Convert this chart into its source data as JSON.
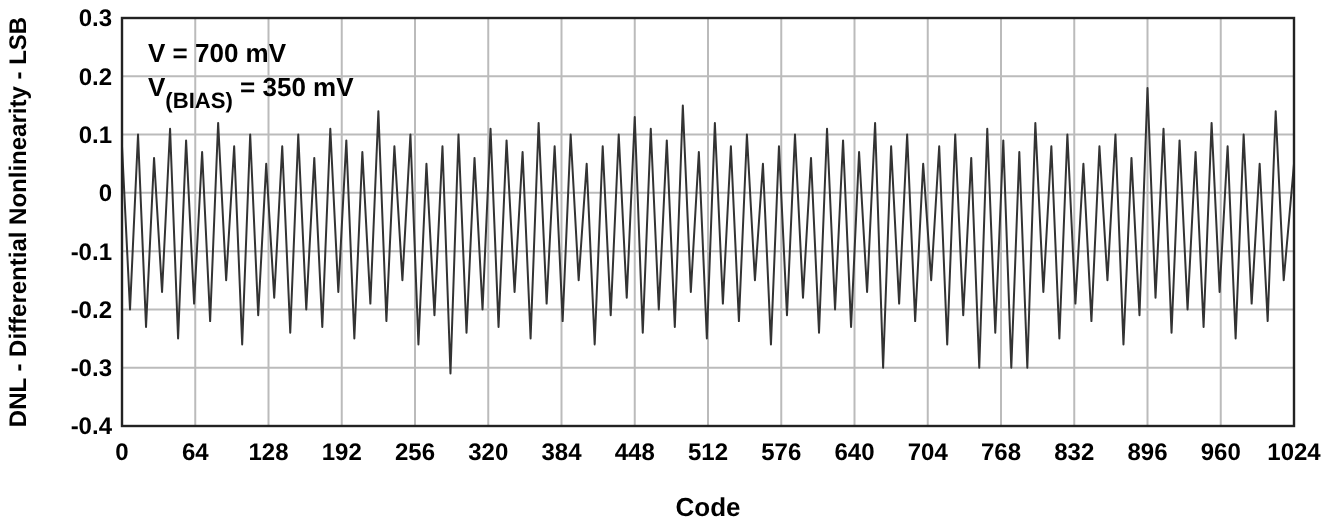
{
  "chart_data": {
    "type": "line",
    "xlabel": "Code",
    "ylabel": "DNL - Differential Nonlinearity - LSB",
    "annotations": [
      "V = 700 mV",
      "V$_{(BIAS)}$ = 350 mV"
    ],
    "x": [
      0,
      7,
      14,
      21,
      28,
      35,
      42,
      49,
      56,
      63,
      70,
      77,
      84,
      91,
      98,
      105,
      112,
      119,
      126,
      133,
      140,
      147,
      154,
      161,
      168,
      175,
      182,
      189,
      196,
      203,
      210,
      217,
      224,
      231,
      238,
      245,
      252,
      259,
      266,
      273,
      280,
      287,
      294,
      301,
      308,
      315,
      322,
      329,
      336,
      343,
      350,
      357,
      364,
      371,
      378,
      385,
      392,
      399,
      406,
      413,
      420,
      427,
      434,
      441,
      448,
      455,
      462,
      469,
      476,
      483,
      490,
      497,
      504,
      511,
      518,
      525,
      532,
      539,
      546,
      553,
      560,
      567,
      574,
      581,
      588,
      595,
      602,
      609,
      616,
      623,
      630,
      637,
      644,
      651,
      658,
      665,
      672,
      679,
      686,
      693,
      700,
      707,
      714,
      721,
      728,
      735,
      742,
      749,
      756,
      763,
      770,
      777,
      784,
      791,
      798,
      805,
      812,
      819,
      826,
      833,
      840,
      847,
      854,
      861,
      868,
      875,
      882,
      889,
      896,
      903,
      910,
      917,
      924,
      931,
      938,
      945,
      952,
      959,
      966,
      973,
      980,
      987,
      994,
      1001,
      1008,
      1015,
      1024
    ],
    "series": [
      {
        "color": "#333333",
        "values": [
          0.08,
          -0.2,
          0.1,
          -0.23,
          0.06,
          -0.17,
          0.11,
          -0.25,
          0.09,
          -0.19,
          0.07,
          -0.22,
          0.12,
          -0.15,
          0.08,
          -0.26,
          0.1,
          -0.21,
          0.05,
          -0.18,
          0.08,
          -0.24,
          0.1,
          -0.2,
          0.06,
          -0.23,
          0.11,
          -0.17,
          0.09,
          -0.25,
          0.07,
          -0.19,
          0.14,
          -0.22,
          0.08,
          -0.15,
          0.1,
          -0.26,
          0.05,
          -0.21,
          0.08,
          -0.31,
          0.1,
          -0.24,
          0.06,
          -0.2,
          0.11,
          -0.23,
          0.09,
          -0.17,
          0.07,
          -0.25,
          0.12,
          -0.19,
          0.08,
          -0.22,
          0.1,
          -0.15,
          0.05,
          -0.26,
          0.08,
          -0.21,
          0.1,
          -0.18,
          0.13,
          -0.24,
          0.11,
          -0.2,
          0.09,
          -0.23,
          0.15,
          -0.17,
          0.07,
          -0.25,
          0.12,
          -0.19,
          0.08,
          -0.22,
          0.1,
          -0.15,
          0.05,
          -0.26,
          0.08,
          -0.21,
          0.1,
          -0.18,
          0.06,
          -0.24,
          0.11,
          -0.2,
          0.09,
          -0.23,
          0.07,
          -0.17,
          0.12,
          -0.3,
          0.08,
          -0.19,
          0.1,
          -0.22,
          0.05,
          -0.15,
          0.08,
          -0.26,
          0.1,
          -0.21,
          0.06,
          -0.3,
          0.11,
          -0.24,
          0.09,
          -0.3,
          0.07,
          -0.3,
          0.12,
          -0.17,
          0.08,
          -0.25,
          0.1,
          -0.19,
          0.05,
          -0.22,
          0.08,
          -0.15,
          0.1,
          -0.26,
          0.06,
          -0.21,
          0.18,
          -0.18,
          0.11,
          -0.24,
          0.09,
          -0.2,
          0.07,
          -0.23,
          0.12,
          -0.17,
          0.08,
          -0.25,
          0.1,
          -0.19,
          0.05,
          -0.22,
          0.14,
          -0.15,
          0.05
        ]
      }
    ],
    "xlim": [
      0,
      1024
    ],
    "xticks": [
      0,
      64,
      128,
      192,
      256,
      320,
      384,
      448,
      512,
      576,
      640,
      704,
      768,
      832,
      896,
      960,
      1024
    ],
    "ylim": [
      -0.4,
      0.3
    ],
    "yticks": [
      -0.4,
      -0.3,
      -0.2,
      -0.1,
      0,
      0.1,
      0.2,
      0.3
    ],
    "grid": true,
    "line_style": "solid"
  }
}
